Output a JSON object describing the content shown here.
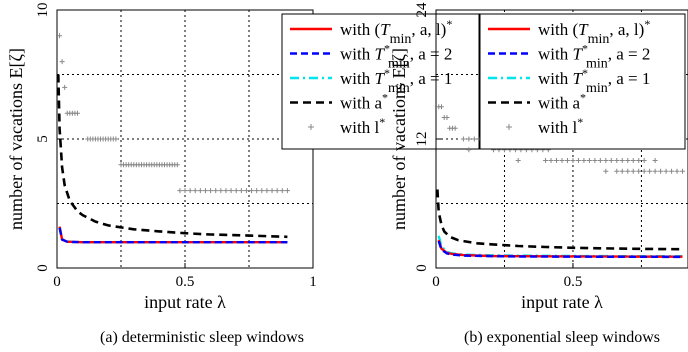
{
  "chart_data": [
    {
      "type": "line",
      "caption": "(a) deterministic sleep windows",
      "xlabel": "input rate λ",
      "ylabel": "number of vacations E[ζ]",
      "xlim": [
        0,
        1
      ],
      "ylim": [
        0,
        10
      ],
      "xticks": [
        "0",
        "0.5",
        "1"
      ],
      "yticks": [
        "0",
        "5",
        "10"
      ],
      "grid": "dotted at x = 0.25, 0.5, 0.75 and y = 2.5, 5, 7.5",
      "legend_placement": "top-right",
      "series": [
        {
          "name": "with (T_min, a, l)*",
          "legend": {
            "pre": "with (",
            "T": "T",
            "sub": "min",
            "post": ", a, l)",
            "sup": "*"
          },
          "color": "#ff0000",
          "dash": "solid",
          "x": [
            0.01,
            0.02,
            0.04,
            0.06,
            0.1,
            0.2,
            0.3,
            0.5,
            0.7,
            0.9
          ],
          "y": [
            1.6,
            1.1,
            1.02,
            1.01,
            1.0,
            1.0,
            1.0,
            1.0,
            1.0,
            1.0
          ]
        },
        {
          "name": "with T*min, a = 2",
          "legend": {
            "pre": "with ",
            "T": "T",
            "supsub": "*min",
            "post": ", a = 2"
          },
          "color": "#0000ff",
          "dash": "dashed",
          "x": [
            0.01,
            0.02,
            0.04,
            0.06,
            0.1,
            0.2,
            0.3,
            0.5,
            0.7,
            0.9
          ],
          "y": [
            1.55,
            1.1,
            1.02,
            1.01,
            1.0,
            1.0,
            1.0,
            1.0,
            1.0,
            1.0
          ]
        },
        {
          "name": "with T*min, a = 1",
          "legend": {
            "pre": "with ",
            "T": "T",
            "supsub": "*min",
            "post": ", a = 1"
          },
          "color": "#00e5ee",
          "dash": "dashdot",
          "x": [
            0.01,
            0.02,
            0.04,
            0.06,
            0.1,
            0.2,
            0.3,
            0.5,
            0.7,
            0.9
          ],
          "y": [
            1.6,
            1.12,
            1.03,
            1.01,
            1.0,
            1.0,
            1.0,
            1.0,
            1.0,
            1.0
          ]
        },
        {
          "name": "with a*",
          "legend": {
            "pre": "with a",
            "sup": "*"
          },
          "color": "#000000",
          "dash": "dashed-thick",
          "x": [
            0.005,
            0.01,
            0.02,
            0.03,
            0.05,
            0.08,
            0.1,
            0.15,
            0.2,
            0.3,
            0.4,
            0.5,
            0.6,
            0.7,
            0.8,
            0.9
          ],
          "y": [
            7.5,
            5.4,
            3.9,
            3.2,
            2.6,
            2.2,
            2.05,
            1.8,
            1.65,
            1.5,
            1.42,
            1.35,
            1.3,
            1.27,
            1.24,
            1.21
          ]
        },
        {
          "name": "with l*",
          "legend": {
            "pre": "with l",
            "sup": "*"
          },
          "color": "#888888",
          "dash": "markers-plus",
          "points": [
            [
              0.01,
              9
            ],
            [
              0.02,
              8
            ],
            [
              0.03,
              7
            ],
            [
              0.04,
              6
            ],
            [
              0.05,
              6
            ],
            [
              0.06,
              6
            ],
            [
              0.07,
              6
            ],
            [
              0.08,
              6
            ],
            [
              0.12,
              5
            ],
            [
              0.13,
              5
            ],
            [
              0.14,
              5
            ],
            [
              0.15,
              5
            ],
            [
              0.16,
              5
            ],
            [
              0.17,
              5
            ],
            [
              0.18,
              5
            ],
            [
              0.19,
              5
            ],
            [
              0.2,
              5
            ],
            [
              0.21,
              5
            ],
            [
              0.22,
              5
            ],
            [
              0.23,
              5
            ],
            [
              0.25,
              4
            ],
            [
              0.26,
              4
            ],
            [
              0.27,
              4
            ],
            [
              0.28,
              4
            ],
            [
              0.29,
              4
            ],
            [
              0.3,
              4
            ],
            [
              0.31,
              4
            ],
            [
              0.32,
              4
            ],
            [
              0.33,
              4
            ],
            [
              0.34,
              4
            ],
            [
              0.35,
              4
            ],
            [
              0.36,
              4
            ],
            [
              0.37,
              4
            ],
            [
              0.38,
              4
            ],
            [
              0.39,
              4
            ],
            [
              0.4,
              4
            ],
            [
              0.41,
              4
            ],
            [
              0.42,
              4
            ],
            [
              0.43,
              4
            ],
            [
              0.44,
              4
            ],
            [
              0.45,
              4
            ],
            [
              0.46,
              4
            ],
            [
              0.47,
              4
            ],
            [
              0.48,
              3
            ],
            [
              0.5,
              3
            ],
            [
              0.52,
              3
            ],
            [
              0.54,
              3
            ],
            [
              0.56,
              3
            ],
            [
              0.58,
              3
            ],
            [
              0.6,
              3
            ],
            [
              0.62,
              3
            ],
            [
              0.64,
              3
            ],
            [
              0.66,
              3
            ],
            [
              0.68,
              3
            ],
            [
              0.7,
              3
            ],
            [
              0.72,
              3
            ],
            [
              0.74,
              3
            ],
            [
              0.76,
              3
            ],
            [
              0.78,
              3
            ],
            [
              0.8,
              3
            ],
            [
              0.82,
              3
            ],
            [
              0.84,
              3
            ],
            [
              0.86,
              3
            ],
            [
              0.88,
              3
            ],
            [
              0.9,
              3
            ]
          ]
        }
      ]
    },
    {
      "type": "line",
      "caption": "(b) exponential sleep windows",
      "xlabel": "input rate λ",
      "ylabel": "number of vacations E[ζ]",
      "xlim": [
        0,
        0.92
      ],
      "ylim": [
        0,
        24
      ],
      "xticks": [
        "0",
        "0.5"
      ],
      "yticks": [
        "0",
        "12",
        "24"
      ],
      "grid": "dotted at x = 0.25, 0.5, 0.75 and y = 6, 12, 18",
      "legend_placement": "top-right",
      "series": [
        {
          "name": "with (T_min, a, l)*",
          "legend": {
            "pre": "with (",
            "T": "T",
            "sub": "min",
            "post": ", a, l)",
            "sup": "*"
          },
          "color": "#ff0000",
          "dash": "solid",
          "x": [
            0.01,
            0.02,
            0.04,
            0.06,
            0.1,
            0.2,
            0.3,
            0.5,
            0.7,
            0.9
          ],
          "y": [
            2.6,
            1.8,
            1.4,
            1.3,
            1.2,
            1.12,
            1.1,
            1.08,
            1.06,
            1.05
          ]
        },
        {
          "name": "with T*min, a = 2",
          "legend": {
            "pre": "with ",
            "T": "T",
            "supsub": "*min",
            "post": ", a = 2"
          },
          "color": "#0000ff",
          "dash": "dashed",
          "x": [
            0.01,
            0.02,
            0.04,
            0.06,
            0.1,
            0.2,
            0.3,
            0.5,
            0.7,
            0.9
          ],
          "y": [
            2.5,
            1.7,
            1.35,
            1.25,
            1.15,
            1.1,
            1.07,
            1.05,
            1.04,
            1.03
          ]
        },
        {
          "name": "with T*min, a = 1",
          "legend": {
            "pre": "with ",
            "T": "T",
            "supsub": "*min",
            "post": ", a = 1"
          },
          "color": "#00e5ee",
          "dash": "dashdot",
          "x": [
            0.01,
            0.02,
            0.04,
            0.06,
            0.1,
            0.2,
            0.3,
            0.5,
            0.7,
            0.9
          ],
          "y": [
            3.0,
            2.0,
            1.5,
            1.35,
            1.25,
            1.18,
            1.15,
            1.12,
            1.1,
            1.1
          ]
        },
        {
          "name": "with a*",
          "legend": {
            "pre": "with a",
            "sup": "*"
          },
          "color": "#000000",
          "dash": "dashed-thick",
          "x": [
            0.005,
            0.01,
            0.02,
            0.03,
            0.05,
            0.08,
            0.1,
            0.15,
            0.2,
            0.3,
            0.4,
            0.5,
            0.6,
            0.7,
            0.8,
            0.9
          ],
          "y": [
            7.3,
            5.2,
            4.0,
            3.4,
            2.9,
            2.6,
            2.5,
            2.3,
            2.2,
            2.05,
            1.95,
            1.88,
            1.83,
            1.8,
            1.77,
            1.75
          ]
        },
        {
          "name": "with l*",
          "legend": {
            "pre": "with l",
            "sup": "*"
          },
          "color": "#888888",
          "dash": "markers-plus",
          "points": [
            [
              0.01,
              15
            ],
            [
              0.02,
              15
            ],
            [
              0.03,
              14
            ],
            [
              0.04,
              14
            ],
            [
              0.05,
              13
            ],
            [
              0.06,
              13
            ],
            [
              0.07,
              13
            ],
            [
              0.1,
              12
            ],
            [
              0.12,
              12
            ],
            [
              0.14,
              12
            ],
            [
              0.16,
              12
            ],
            [
              0.18,
              12
            ],
            [
              0.2,
              12
            ],
            [
              0.22,
              12
            ],
            [
              0.12,
              11
            ],
            [
              0.21,
              11
            ],
            [
              0.23,
              11
            ],
            [
              0.25,
              11
            ],
            [
              0.27,
              11
            ],
            [
              0.29,
              11
            ],
            [
              0.31,
              11
            ],
            [
              0.33,
              11
            ],
            [
              0.35,
              11
            ],
            [
              0.37,
              11
            ],
            [
              0.39,
              11
            ],
            [
              0.41,
              11
            ],
            [
              0.3,
              10
            ],
            [
              0.4,
              10
            ],
            [
              0.42,
              10
            ],
            [
              0.44,
              10
            ],
            [
              0.46,
              10
            ],
            [
              0.48,
              10
            ],
            [
              0.5,
              10
            ],
            [
              0.52,
              10
            ],
            [
              0.54,
              10
            ],
            [
              0.56,
              10
            ],
            [
              0.58,
              10
            ],
            [
              0.6,
              10
            ],
            [
              0.62,
              10
            ],
            [
              0.64,
              10
            ],
            [
              0.66,
              10
            ],
            [
              0.68,
              10
            ],
            [
              0.7,
              10
            ],
            [
              0.72,
              10
            ],
            [
              0.74,
              10
            ],
            [
              0.76,
              10
            ],
            [
              0.8,
              10
            ],
            [
              0.62,
              9
            ],
            [
              0.66,
              9
            ],
            [
              0.68,
              9
            ],
            [
              0.7,
              9
            ],
            [
              0.72,
              9
            ],
            [
              0.74,
              9
            ],
            [
              0.76,
              9
            ],
            [
              0.78,
              9
            ],
            [
              0.8,
              9
            ],
            [
              0.82,
              9
            ],
            [
              0.84,
              9
            ],
            [
              0.86,
              9
            ],
            [
              0.88,
              9
            ],
            [
              0.9,
              9
            ]
          ]
        }
      ]
    }
  ]
}
